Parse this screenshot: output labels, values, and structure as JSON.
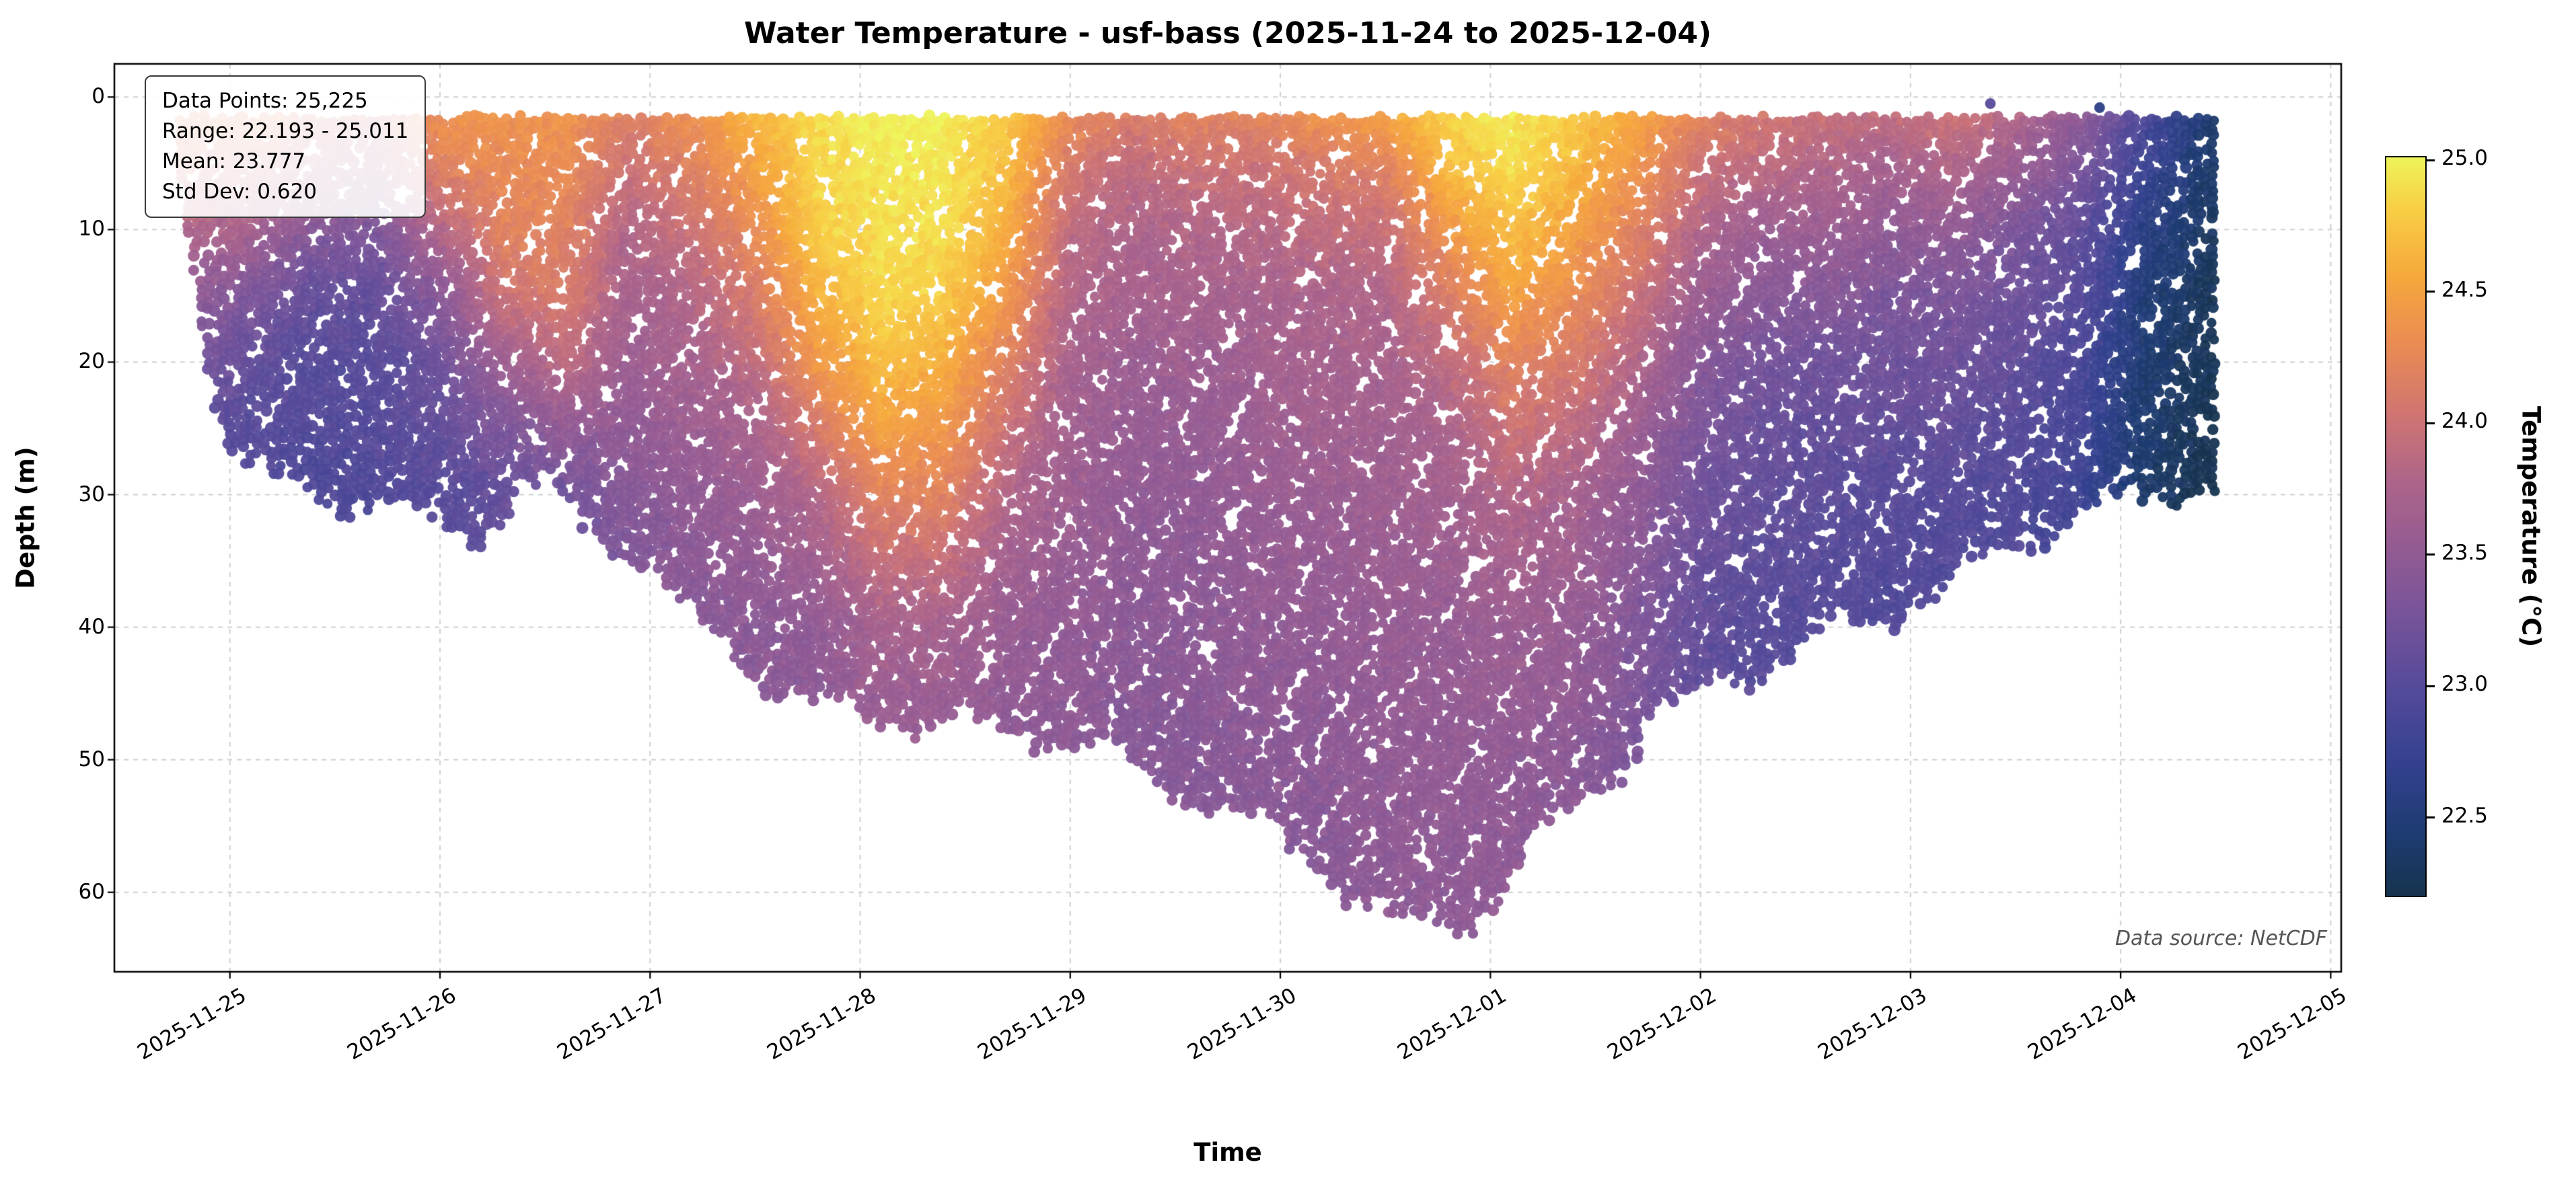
{
  "title": "Water Temperature - usf-bass (2025-11-24 to 2025-12-04)",
  "source_note": "Data source: NetCDF",
  "stats_box": {
    "lines": [
      "Data Points: 25,225",
      "Range: 22.193 - 25.011",
      "Mean: 23.777",
      "Std Dev: 0.620"
    ]
  },
  "chart_data": {
    "type": "scatter",
    "title": "Water Temperature - usf-bass (2025-11-24 to 2025-12-04)",
    "xlabel": "Time",
    "ylabel": "Depth (m)",
    "colorbar_label": "Temperature (°C)",
    "x_origin_date": "2025-11-24",
    "x_tick_days": [
      1,
      2,
      3,
      4,
      5,
      6,
      7,
      8,
      9,
      10,
      11
    ],
    "x_tick_labels": [
      "2025-11-25",
      "2025-11-26",
      "2025-11-27",
      "2025-11-28",
      "2025-11-29",
      "2025-11-30",
      "2025-12-01",
      "2025-12-02",
      "2025-12-03",
      "2025-12-04",
      "2025-12-05"
    ],
    "xlim_days": [
      0.45,
      11.05
    ],
    "y_ticks": [
      0,
      10,
      20,
      30,
      40,
      50,
      60
    ],
    "ylim": [
      -2.5,
      66
    ],
    "colorbar_ticks": [
      "22.5",
      "23.0",
      "23.5",
      "24.0",
      "24.5",
      "25.0"
    ],
    "vmin": 22.193,
    "vmax": 25.011,
    "n_points": 25225,
    "mean": 23.777,
    "std": 0.62,
    "grid_dashed": true,
    "marker_size_px": 8,
    "colormap_stops": [
      [
        0.0,
        "#16344f"
      ],
      [
        0.09,
        "#1f3c74"
      ],
      [
        0.18,
        "#34418f"
      ],
      [
        0.28,
        "#544a9a"
      ],
      [
        0.38,
        "#77539a"
      ],
      [
        0.47,
        "#935b93"
      ],
      [
        0.56,
        "#ad648a"
      ],
      [
        0.65,
        "#cf7472"
      ],
      [
        0.75,
        "#ea8c52"
      ],
      [
        0.84,
        "#f6a83c"
      ],
      [
        0.93,
        "#f8ce44"
      ],
      [
        1.0,
        "#eef45a"
      ]
    ],
    "envelope": {
      "min_depth_m": 1.5,
      "t_days": [
        0.77,
        0.85,
        0.95,
        1.05,
        1.2,
        1.5,
        1.8,
        2.0,
        2.2,
        2.4,
        2.6,
        2.8,
        3.0,
        3.2,
        3.4,
        3.6,
        3.8,
        4.0,
        4.3,
        4.6,
        4.9,
        5.2,
        5.5,
        5.8,
        6.1,
        6.35,
        6.55,
        6.9,
        7.1,
        7.3,
        7.5,
        7.7,
        7.9,
        8.1,
        8.4,
        8.7,
        9.0,
        9.3,
        9.6,
        9.9,
        10.15,
        10.3,
        10.46
      ],
      "max_depth_m": [
        6,
        14,
        24,
        28,
        29,
        30,
        31,
        32,
        33,
        29,
        31,
        34,
        35,
        40,
        42,
        44,
        46,
        47,
        47,
        48,
        48,
        50,
        52,
        54,
        57,
        60,
        62.5,
        62.5,
        59,
        55,
        52,
        49,
        46,
        44,
        42,
        40,
        38,
        36,
        33,
        31,
        30,
        29,
        29
      ]
    },
    "temperature_grid": {
      "t_days": [
        0.8,
        1.1,
        1.4,
        1.7,
        2.0,
        2.3,
        2.6,
        2.9,
        3.2,
        3.5,
        3.8,
        4.1,
        4.4,
        4.7,
        5.0,
        5.3,
        5.6,
        5.9,
        6.2,
        6.5,
        6.8,
        7.1,
        7.4,
        7.7,
        8.0,
        8.3,
        8.6,
        8.9,
        9.2,
        9.5,
        9.8,
        10.1,
        10.45
      ],
      "depths_m": [
        0,
        5,
        10,
        15,
        20,
        25,
        30,
        40,
        50,
        65
      ],
      "temps_c": [
        [
          24.2,
          24.1,
          23.8,
          23.5,
          23.3,
          23.1,
          23.0,
          23.0,
          23.0,
          23.0
        ],
        [
          24.3,
          24.0,
          23.7,
          23.3,
          23.1,
          23.0,
          22.95,
          22.95,
          22.95,
          22.95
        ],
        [
          24.2,
          23.8,
          23.4,
          23.1,
          23.0,
          22.95,
          22.9,
          22.9,
          22.9,
          22.9
        ],
        [
          24.1,
          23.7,
          23.3,
          23.1,
          23.0,
          23.0,
          22.95,
          22.95,
          22.95,
          22.95
        ],
        [
          24.4,
          24.2,
          23.8,
          23.4,
          23.2,
          23.1,
          23.0,
          23.0,
          23.0,
          23.0
        ],
        [
          24.4,
          24.3,
          24.2,
          24.0,
          23.6,
          23.3,
          23.1,
          23.05,
          23.05,
          23.05
        ],
        [
          24.4,
          24.3,
          24.2,
          24.1,
          23.9,
          23.5,
          23.2,
          23.1,
          23.1,
          23.1
        ],
        [
          24.2,
          24.0,
          23.8,
          23.7,
          23.6,
          23.5,
          23.4,
          23.3,
          23.3,
          23.3
        ],
        [
          24.4,
          24.2,
          24.0,
          23.8,
          23.7,
          23.6,
          23.5,
          23.4,
          23.35,
          23.35
        ],
        [
          24.7,
          24.5,
          24.3,
          24.1,
          23.9,
          23.7,
          23.6,
          23.45,
          23.4,
          23.4
        ],
        [
          24.9,
          24.85,
          24.8,
          24.6,
          24.4,
          24.1,
          23.8,
          23.5,
          23.45,
          23.4
        ],
        [
          25.0,
          24.95,
          24.9,
          24.85,
          24.7,
          24.5,
          24.2,
          23.7,
          23.5,
          23.45
        ],
        [
          25.0,
          24.95,
          24.9,
          24.8,
          24.6,
          24.4,
          24.2,
          23.7,
          23.5,
          23.45
        ],
        [
          24.8,
          24.7,
          24.6,
          24.4,
          24.2,
          24.0,
          23.8,
          23.55,
          23.45,
          23.4
        ],
        [
          24.4,
          24.1,
          23.9,
          23.8,
          23.7,
          23.65,
          23.6,
          23.5,
          23.45,
          23.4
        ],
        [
          24.2,
          23.9,
          23.75,
          23.7,
          23.6,
          23.55,
          23.5,
          23.45,
          23.4,
          23.4
        ],
        [
          24.3,
          24.0,
          23.8,
          23.7,
          23.6,
          23.55,
          23.5,
          23.45,
          23.4,
          23.4
        ],
        [
          24.3,
          24.0,
          23.85,
          23.7,
          23.65,
          23.6,
          23.55,
          23.5,
          23.45,
          23.4
        ],
        [
          24.5,
          24.1,
          23.9,
          23.75,
          23.7,
          23.65,
          23.6,
          23.5,
          23.45,
          23.4
        ],
        [
          24.6,
          24.2,
          23.95,
          23.8,
          23.7,
          23.65,
          23.6,
          23.55,
          23.5,
          23.45
        ],
        [
          24.9,
          24.7,
          24.4,
          24.1,
          23.9,
          23.75,
          23.65,
          23.55,
          23.5,
          23.45
        ],
        [
          25.0,
          24.9,
          24.7,
          24.5,
          24.2,
          24.0,
          23.8,
          23.6,
          23.5,
          23.45
        ],
        [
          24.8,
          24.7,
          24.5,
          24.3,
          24.1,
          23.9,
          23.7,
          23.55,
          23.45,
          23.4
        ],
        [
          24.6,
          24.4,
          24.2,
          24.0,
          23.8,
          23.6,
          23.5,
          23.35,
          23.3,
          23.3
        ],
        [
          24.3,
          24.0,
          23.8,
          23.6,
          23.4,
          23.3,
          23.2,
          23.1,
          23.05,
          23.05
        ],
        [
          24.1,
          23.9,
          23.6,
          23.4,
          23.25,
          23.15,
          23.1,
          23.0,
          23.0,
          23.0
        ],
        [
          24.0,
          23.8,
          23.6,
          23.4,
          23.2,
          23.1,
          23.05,
          23.0,
          22.95,
          22.95
        ],
        [
          24.0,
          23.7,
          23.5,
          23.3,
          23.2,
          23.1,
          23.0,
          22.95,
          22.95,
          22.95
        ],
        [
          24.1,
          23.8,
          23.5,
          23.3,
          23.2,
          23.1,
          23.0,
          22.95,
          22.9,
          22.9
        ],
        [
          23.9,
          23.6,
          23.3,
          23.2,
          23.1,
          23.0,
          22.95,
          22.9,
          22.9,
          22.9
        ],
        [
          23.6,
          23.3,
          23.1,
          23.0,
          22.9,
          22.85,
          22.8,
          22.8,
          22.8,
          22.8
        ],
        [
          23.0,
          22.8,
          22.6,
          22.5,
          22.45,
          22.4,
          22.4,
          22.4,
          22.4,
          22.4
        ],
        [
          22.4,
          22.35,
          22.3,
          22.25,
          22.25,
          22.2,
          22.2,
          22.2,
          22.2,
          22.2
        ]
      ]
    },
    "outliers": [
      {
        "t_day": 9.38,
        "depth_m": 0.5,
        "temp_c": 23.0
      },
      {
        "t_day": 9.9,
        "depth_m": 0.8,
        "temp_c": 22.6
      }
    ]
  }
}
